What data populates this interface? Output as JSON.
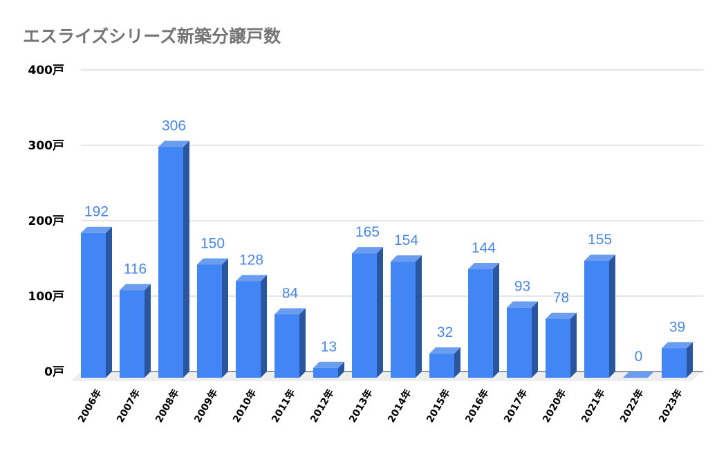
{
  "chart_data": {
    "type": "bar",
    "style": "3d-column",
    "title": "エスライズシリーズ新築分譲戸数",
    "xlabel": "",
    "ylabel": "",
    "categories": [
      "2006年",
      "2007年",
      "2008年",
      "2009年",
      "2010年",
      "2011年",
      "2012年",
      "2013年",
      "2014年",
      "2015年",
      "2016年",
      "2017年",
      "2020年",
      "2021年",
      "2022年",
      "2023年"
    ],
    "values": [
      192,
      116,
      306,
      150,
      128,
      84,
      13,
      165,
      154,
      32,
      144,
      93,
      78,
      155,
      0,
      39
    ],
    "series": [
      {
        "name": "新築分譲戸数",
        "values": [
          192,
          116,
          306,
          150,
          128,
          84,
          13,
          165,
          154,
          32,
          144,
          93,
          78,
          155,
          0,
          39
        ]
      }
    ],
    "ylim": [
      0,
      400
    ],
    "yticks": [
      0,
      100,
      200,
      300,
      400
    ],
    "ytick_labels": [
      "0戸",
      "100戸",
      "200戸",
      "300戸",
      "400戸"
    ],
    "grid": true,
    "legend": "none",
    "data_labels": true,
    "colors": {
      "bar_front": "#4285f4",
      "bar_top": "#6a9cf0",
      "bar_side": "#2a56a0",
      "data_label": "#4a86e8",
      "gridline": "#cccccc",
      "baseline": "#333333",
      "floor": "#eeeeee",
      "title": "#757575",
      "tick_text": "#000000"
    }
  }
}
